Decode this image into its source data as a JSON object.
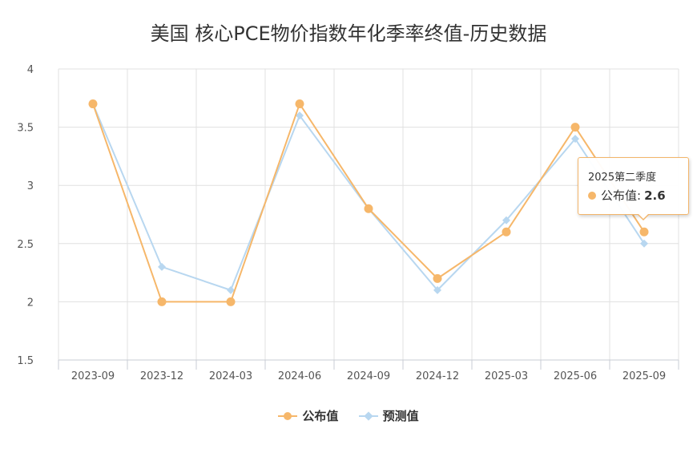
{
  "chart_data": {
    "type": "line",
    "title": "美国 核心PCE物价指数年化季率终值-历史数据",
    "categories": [
      "2023-09",
      "2023-12",
      "2024-03",
      "2024-06",
      "2024-09",
      "2024-12",
      "2025-03",
      "2025-06",
      "2025-09"
    ],
    "y_ticks": [
      "1.5",
      "2",
      "2.5",
      "3",
      "3.5",
      "4"
    ],
    "ylim": [
      1.5,
      4
    ],
    "grid": true,
    "legend_position": "bottom",
    "series": [
      {
        "name": "公布值",
        "color": "#f6b76a",
        "marker": "circle",
        "values": [
          3.7,
          2.0,
          2.0,
          3.7,
          2.8,
          2.2,
          2.6,
          3.5,
          2.6
        ]
      },
      {
        "name": "预测值",
        "color": "#b8d7f0",
        "marker": "diamond",
        "values": [
          3.7,
          2.3,
          2.1,
          3.6,
          2.8,
          2.1,
          2.7,
          3.4,
          2.5
        ]
      }
    ]
  },
  "tooltip": {
    "title": "2025第二季度",
    "series_name": "公布值",
    "separator": ":",
    "value": "2.6"
  },
  "colors": {
    "grid": "#e0e0e0",
    "axis": "#c8ccd4"
  }
}
